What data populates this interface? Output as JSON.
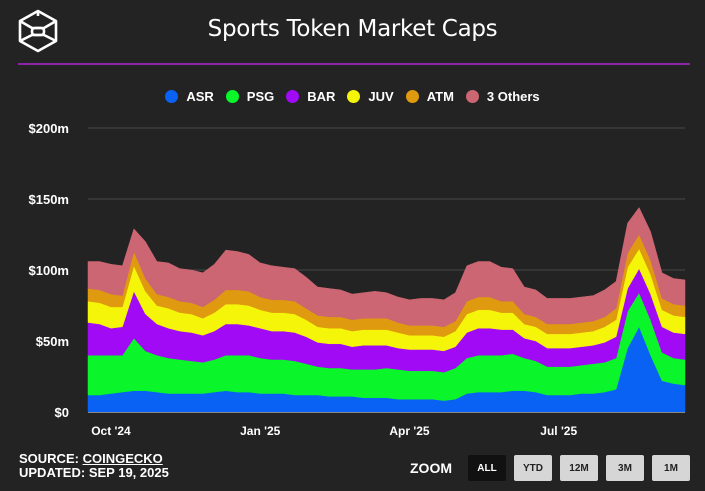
{
  "header": {
    "title": "Sports Token Market Caps",
    "logo_icon": "cube-logo-icon"
  },
  "footer": {
    "source_label": "SOURCE:",
    "source_link": "COINGECKO",
    "updated_label": "UPDATED:",
    "updated_value": "SEP 19, 2025"
  },
  "zoom": {
    "label": "ZOOM",
    "buttons": [
      {
        "label": "ALL",
        "active": true
      },
      {
        "label": "YTD",
        "active": false
      },
      {
        "label": "12M",
        "active": false
      },
      {
        "label": "3M",
        "active": false
      },
      {
        "label": "1M",
        "active": false
      }
    ]
  },
  "chart_data": {
    "type": "area",
    "stacked": true,
    "title": "Sports Token Market Caps",
    "xlabel": "",
    "ylabel": "",
    "ylim": [
      0,
      200
    ],
    "y_unit": "$m",
    "y_ticks": [
      "$0",
      "$50m",
      "$100m",
      "$150m",
      "$200m"
    ],
    "y_tick_values": [
      0,
      50,
      100,
      150,
      200
    ],
    "x_ticks": [
      "Oct '24",
      "Jan '25",
      "Apr '25",
      "Jul '25"
    ],
    "x_tick_week_index": [
      2,
      15,
      28,
      41
    ],
    "grid": true,
    "legend_position": "top-center",
    "x": [
      "2024-09-19",
      "2024-09-26",
      "2024-10-03",
      "2024-10-10",
      "2024-10-17",
      "2024-10-24",
      "2024-10-31",
      "2024-11-07",
      "2024-11-14",
      "2024-11-21",
      "2024-11-28",
      "2024-12-05",
      "2024-12-12",
      "2024-12-19",
      "2024-12-26",
      "2025-01-02",
      "2025-01-09",
      "2025-01-16",
      "2025-01-23",
      "2025-01-30",
      "2025-02-06",
      "2025-02-13",
      "2025-02-20",
      "2025-02-27",
      "2025-03-06",
      "2025-03-13",
      "2025-03-20",
      "2025-03-27",
      "2025-04-03",
      "2025-04-10",
      "2025-04-17",
      "2025-04-24",
      "2025-05-01",
      "2025-05-08",
      "2025-05-15",
      "2025-05-22",
      "2025-05-29",
      "2025-06-05",
      "2025-06-12",
      "2025-06-19",
      "2025-06-26",
      "2025-07-03",
      "2025-07-10",
      "2025-07-17",
      "2025-07-24",
      "2025-07-31",
      "2025-08-07",
      "2025-08-14",
      "2025-08-21",
      "2025-08-28",
      "2025-09-04",
      "2025-09-11",
      "2025-09-19"
    ],
    "series": [
      {
        "name": "ASR",
        "color": "#0a62f5",
        "values": [
          12,
          12,
          13,
          14,
          15,
          15,
          14,
          13,
          13,
          13,
          13,
          14,
          15,
          14,
          14,
          13,
          13,
          13,
          12,
          12,
          12,
          11,
          11,
          11,
          10,
          10,
          10,
          9,
          9,
          9,
          9,
          8,
          9,
          13,
          14,
          14,
          14,
          15,
          15,
          14,
          12,
          12,
          12,
          13,
          13,
          14,
          16,
          45,
          60,
          40,
          22,
          20,
          19
        ]
      },
      {
        "name": "PSG",
        "color": "#0af52a",
        "values": [
          28,
          28,
          27,
          26,
          37,
          28,
          26,
          25,
          24,
          23,
          22,
          23,
          25,
          26,
          26,
          25,
          24,
          24,
          24,
          22,
          20,
          20,
          20,
          19,
          20,
          20,
          21,
          21,
          20,
          20,
          20,
          20,
          22,
          25,
          26,
          26,
          26,
          26,
          23,
          22,
          20,
          20,
          20,
          20,
          21,
          21,
          22,
          26,
          24,
          25,
          20,
          18,
          18
        ]
      },
      {
        "name": "BAR",
        "color": "#a10af5",
        "values": [
          23,
          22,
          19,
          20,
          33,
          26,
          22,
          21,
          20,
          20,
          19,
          20,
          22,
          22,
          21,
          21,
          20,
          20,
          20,
          19,
          17,
          17,
          17,
          16,
          17,
          17,
          16,
          15,
          15,
          15,
          15,
          15,
          15,
          18,
          19,
          19,
          18,
          17,
          14,
          14,
          13,
          13,
          13,
          13,
          13,
          14,
          15,
          16,
          17,
          18,
          18,
          18,
          18
        ]
      },
      {
        "name": "JUV",
        "color": "#f5f50a",
        "values": [
          15,
          15,
          15,
          14,
          18,
          16,
          13,
          14,
          13,
          13,
          12,
          13,
          14,
          14,
          14,
          13,
          13,
          13,
          13,
          12,
          11,
          11,
          11,
          11,
          11,
          11,
          11,
          11,
          10,
          10,
          10,
          10,
          11,
          13,
          13,
          13,
          12,
          12,
          10,
          10,
          10,
          10,
          10,
          10,
          10,
          11,
          12,
          15,
          14,
          14,
          12,
          12,
          12
        ]
      },
      {
        "name": "ATM",
        "color": "#e09a0f",
        "values": [
          9,
          9,
          9,
          8,
          10,
          9,
          8,
          8,
          8,
          8,
          8,
          9,
          10,
          10,
          10,
          9,
          9,
          9,
          9,
          8,
          8,
          8,
          8,
          8,
          8,
          8,
          8,
          7,
          7,
          7,
          7,
          7,
          7,
          9,
          9,
          9,
          8,
          8,
          7,
          7,
          7,
          7,
          7,
          7,
          7,
          7,
          8,
          10,
          10,
          10,
          8,
          8,
          8
        ]
      },
      {
        "name": "3 Others",
        "color": "#cc6673",
        "values": [
          19,
          20,
          21,
          21,
          16,
          26,
          23,
          24,
          23,
          23,
          24,
          25,
          28,
          27,
          26,
          24,
          24,
          23,
          23,
          22,
          20,
          20,
          19,
          18,
          18,
          19,
          18,
          18,
          18,
          19,
          19,
          19,
          20,
          25,
          25,
          25,
          24,
          23,
          19,
          19,
          18,
          18,
          18,
          18,
          18,
          19,
          19,
          21,
          19,
          20,
          18,
          18,
          18
        ]
      }
    ]
  }
}
